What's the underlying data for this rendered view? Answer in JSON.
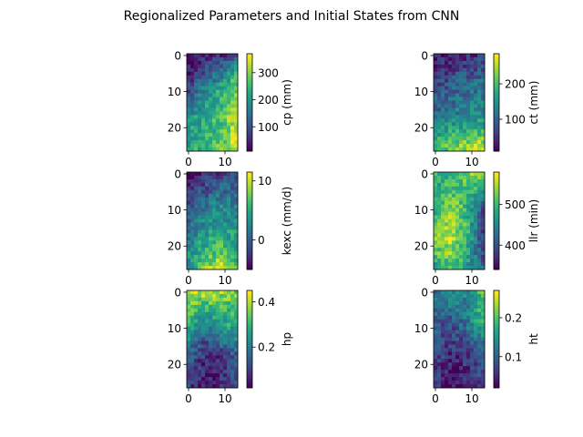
{
  "figure": {
    "title": "Regionalized Parameters and Initial States from CNN"
  },
  "chart_data": [
    {
      "type": "heatmap",
      "name": "cp",
      "colorbar_label": "cp (mm)",
      "grid_rows": 27,
      "grid_cols": 14,
      "xlim": [
        0,
        13
      ],
      "ylim": [
        26,
        0
      ],
      "x_ticks": [
        "0",
        "10"
      ],
      "y_ticks": [
        "0",
        "10",
        "20"
      ],
      "vmin": 10,
      "vmax": 370,
      "colorbar_ticks": [
        100,
        200,
        300
      ],
      "pattern": "low (dark purple) in top rows, higher (green to yellow) in lower rows, brightest along right edge",
      "values_coarse": [
        [
          20,
          40,
          60,
          120
        ],
        [
          80,
          160,
          220,
          300
        ],
        [
          200,
          230,
          260,
          330
        ],
        [
          220,
          260,
          280,
          350
        ]
      ]
    },
    {
      "type": "heatmap",
      "name": "ct",
      "colorbar_label": "ct (mm)",
      "grid_rows": 27,
      "grid_cols": 14,
      "xlim": [
        0,
        13
      ],
      "ylim": [
        26,
        0
      ],
      "x_ticks": [
        "0",
        "10"
      ],
      "y_ticks": [
        "0",
        "10",
        "20"
      ],
      "vmin": 10,
      "vmax": 285,
      "colorbar_ticks": [
        100,
        200
      ],
      "pattern": "mostly low-mid (purple/blue), green-yellow band at bottom rows",
      "values_coarse": [
        [
          30,
          40,
          50,
          60
        ],
        [
          70,
          90,
          100,
          120
        ],
        [
          110,
          130,
          140,
          150
        ],
        [
          200,
          230,
          250,
          270
        ]
      ]
    },
    {
      "type": "heatmap",
      "name": "kexc",
      "colorbar_label": "kexc (mm/d)",
      "grid_rows": 27,
      "grid_cols": 14,
      "xlim": [
        0,
        13
      ],
      "ylim": [
        26,
        0
      ],
      "x_ticks": [
        "0",
        "10"
      ],
      "y_ticks": [
        "0",
        "10",
        "20"
      ],
      "vmin": -5,
      "vmax": 11.5,
      "colorbar_ticks": [
        0,
        10
      ],
      "pattern": "low at top, increasing toward bottom with yellow cluster near lower center",
      "values_coarse": [
        [
          -4,
          -3,
          -2,
          -1
        ],
        [
          -1,
          1,
          3,
          2
        ],
        [
          2,
          4,
          5,
          4
        ],
        [
          4,
          8,
          10,
          6
        ]
      ]
    },
    {
      "type": "heatmap",
      "name": "llr",
      "colorbar_label": "llr (min)",
      "grid_rows": 27,
      "grid_cols": 14,
      "xlim": [
        0,
        13
      ],
      "ylim": [
        26,
        0
      ],
      "x_ticks": [
        "0",
        "10"
      ],
      "y_ticks": [
        "0",
        "10",
        "20"
      ],
      "vmin": 340,
      "vmax": 580,
      "colorbar_ticks": [
        400,
        500
      ],
      "pattern": "mostly green-yellow, dark purple column on right side",
      "values_coarse": [
        [
          500,
          480,
          520,
          560
        ],
        [
          470,
          540,
          500,
          400
        ],
        [
          540,
          560,
          500,
          380
        ],
        [
          480,
          520,
          470,
          420
        ]
      ]
    },
    {
      "type": "heatmap",
      "name": "hp",
      "colorbar_label": "hp",
      "grid_rows": 27,
      "grid_cols": 14,
      "xlim": [
        0,
        13
      ],
      "ylim": [
        26,
        0
      ],
      "x_ticks": [
        "0",
        "10"
      ],
      "y_ticks": [
        "0",
        "10",
        "20"
      ],
      "vmin": 0.02,
      "vmax": 0.45,
      "colorbar_ticks": [
        0.2,
        0.4
      ],
      "pattern": "yellow/green at top, dark purple in lower half",
      "values_coarse": [
        [
          0.42,
          0.4,
          0.38,
          0.36
        ],
        [
          0.3,
          0.2,
          0.25,
          0.3
        ],
        [
          0.15,
          0.08,
          0.1,
          0.15
        ],
        [
          0.1,
          0.05,
          0.06,
          0.1
        ]
      ]
    },
    {
      "type": "heatmap",
      "name": "ht",
      "colorbar_label": "ht",
      "grid_rows": 27,
      "grid_cols": 14,
      "xlim": [
        0,
        13
      ],
      "ylim": [
        26,
        0
      ],
      "x_ticks": [
        "0",
        "10"
      ],
      "y_ticks": [
        "0",
        "10",
        "20"
      ],
      "vmin": 0.02,
      "vmax": 0.27,
      "colorbar_ticks": [
        0.1,
        0.2
      ],
      "pattern": "mid teal at top, darker purple in lower half, green at right edge",
      "values_coarse": [
        [
          0.12,
          0.15,
          0.14,
          0.2
        ],
        [
          0.1,
          0.08,
          0.12,
          0.18
        ],
        [
          0.07,
          0.05,
          0.06,
          0.09
        ],
        [
          0.06,
          0.03,
          0.04,
          0.07
        ]
      ]
    }
  ]
}
